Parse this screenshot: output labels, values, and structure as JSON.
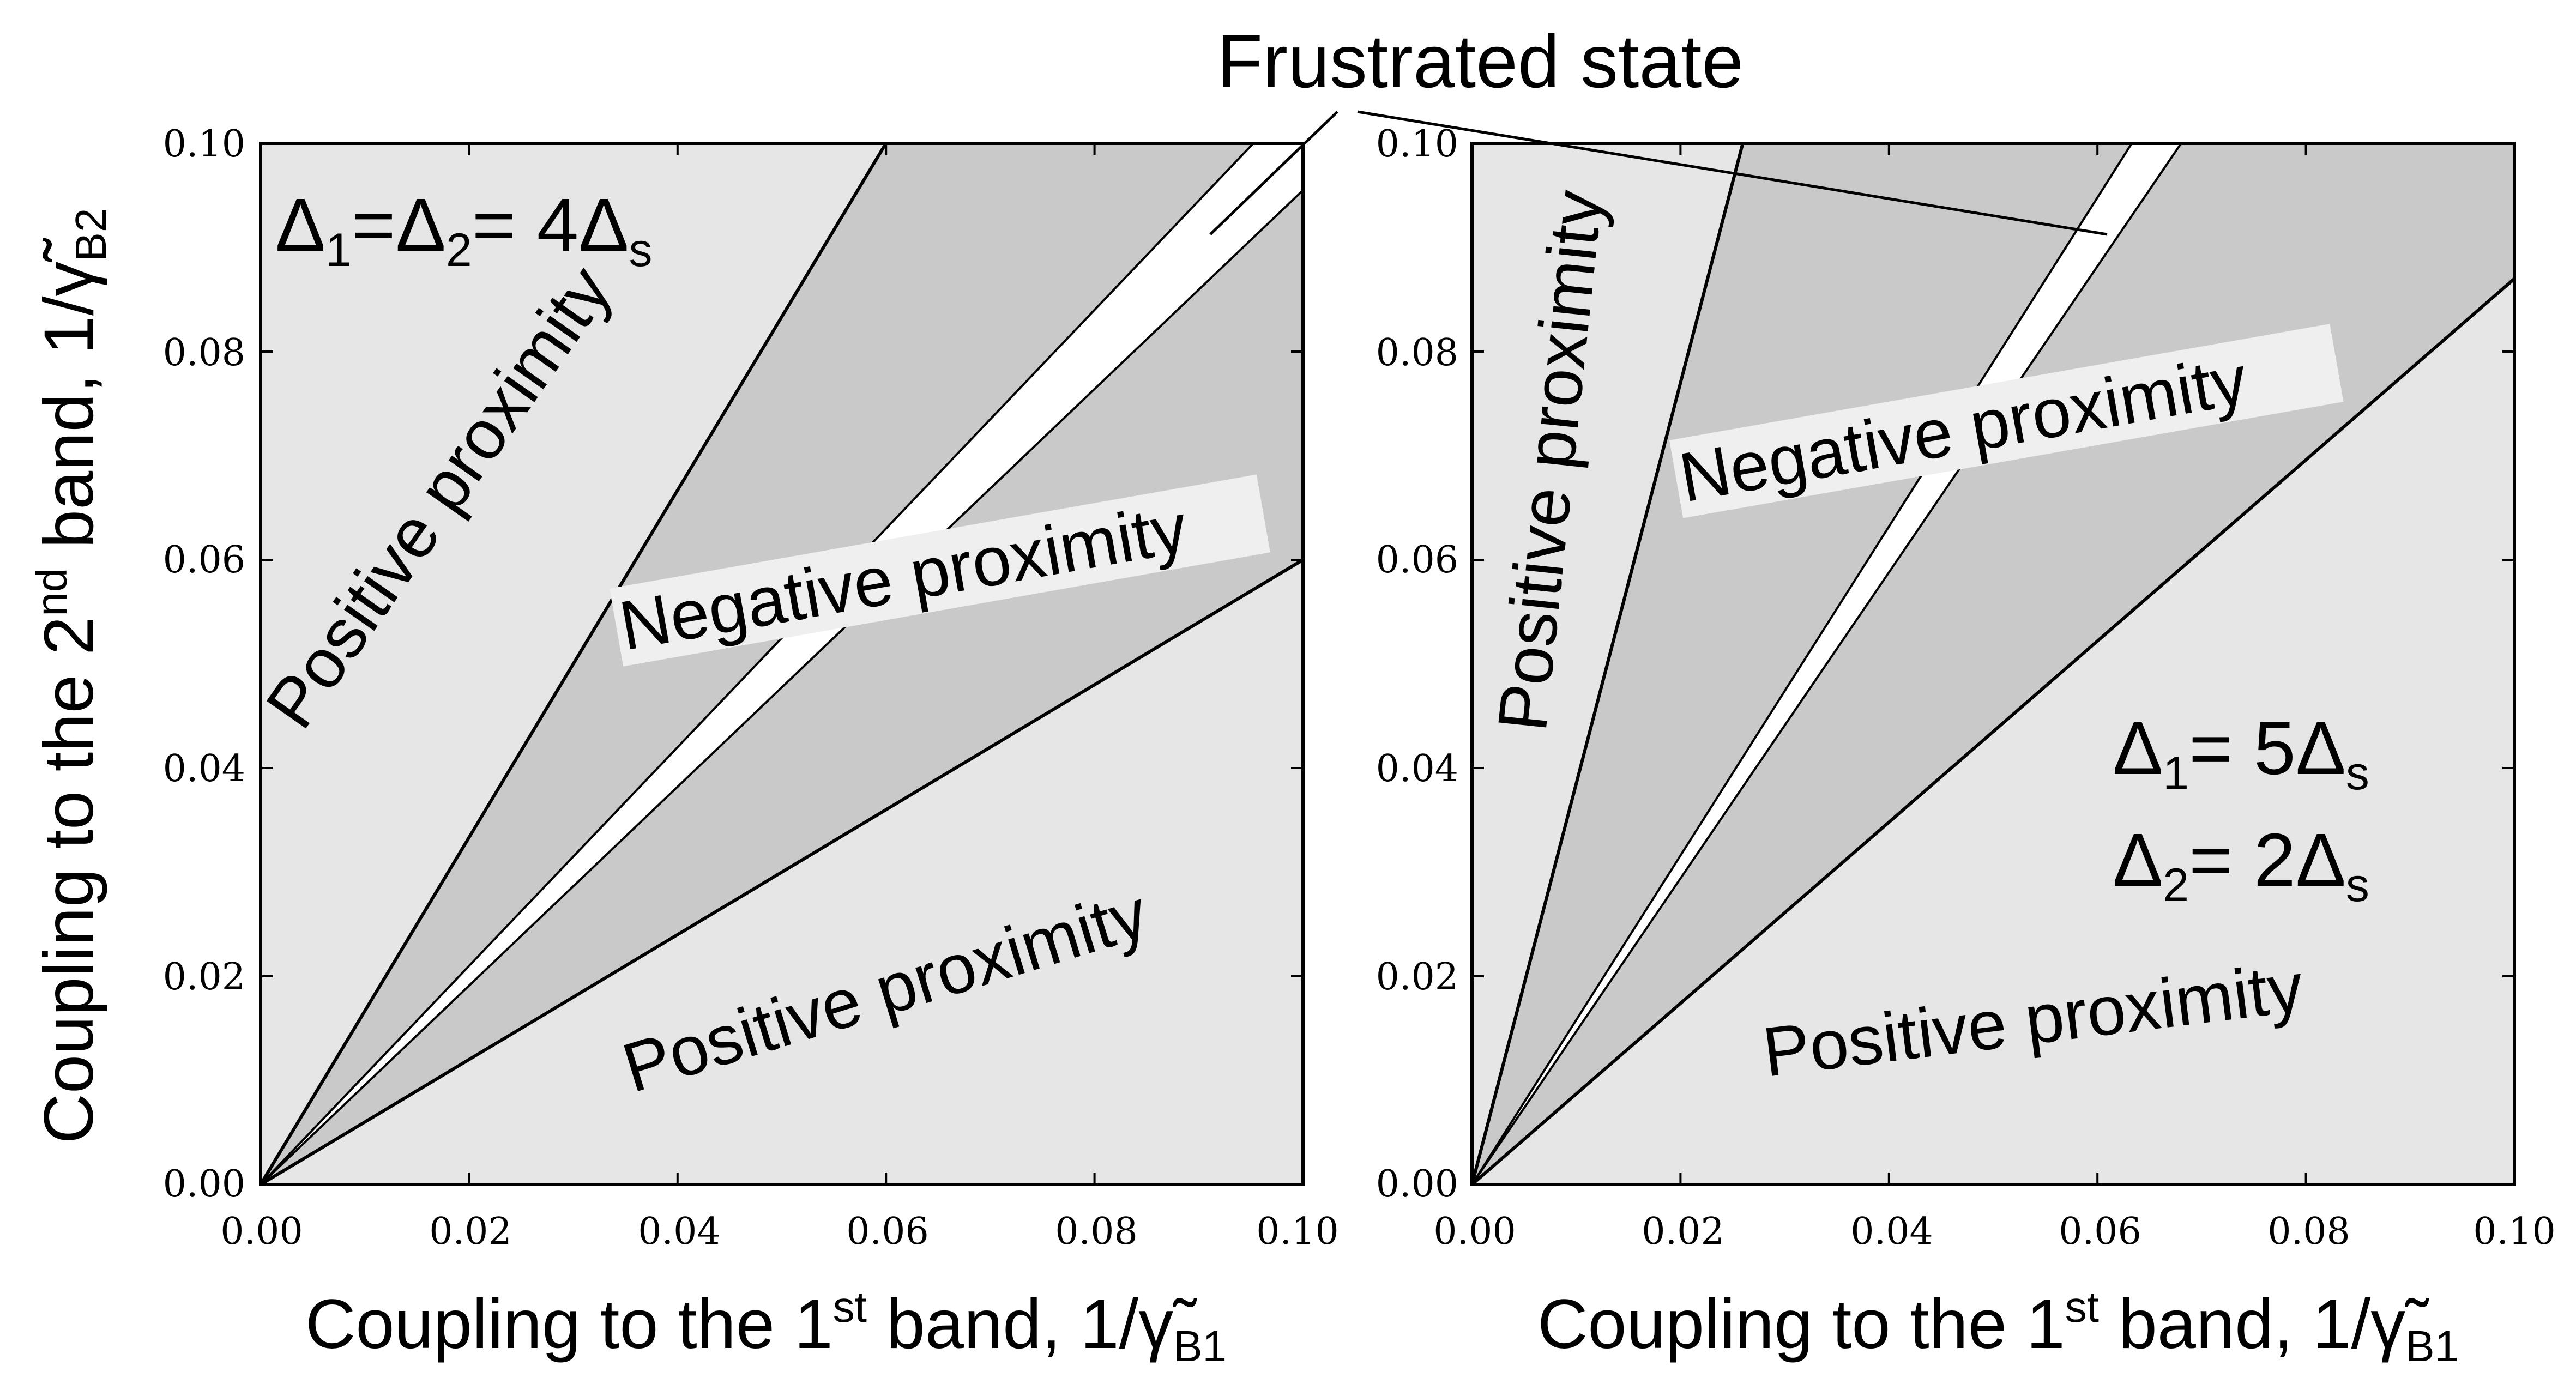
{
  "chart_data": [
    {
      "type": "area",
      "title": "",
      "xlabel": {
        "prefix": "Coupling to the 1",
        "sup": "st",
        "mid": " band, 1/",
        "symbol": "γ̃",
        "sub": "B1"
      },
      "ylabel": {
        "prefix": "Coupling to the 2",
        "sup": "nd",
        "mid": " band, 1/",
        "symbol": "γ̃",
        "sub": "B2"
      },
      "xlim": [
        0,
        0.1
      ],
      "ylim": [
        0,
        0.1
      ],
      "xticks": [
        "0.00",
        "0.02",
        "0.04",
        "0.06",
        "0.08",
        "0.10"
      ],
      "yticks": [
        "0.00",
        "0.02",
        "0.04",
        "0.06",
        "0.08",
        "0.10"
      ],
      "boundary_slopes": {
        "upper": 1.667,
        "frustrated_low": 0.955,
        "frustrated_high": 1.05,
        "lower": 0.6
      },
      "colors": {
        "positive": "#e6e6e6",
        "negative": "#c9c9c9",
        "frustrated": "#ffffff",
        "line": "#000000"
      },
      "annotation": {
        "d1": "Δ",
        "s1": "1",
        "eq1": "=",
        "d2": "Δ",
        "s2": "2",
        "eq2": "= 4",
        "d3": "Δ",
        "s3": "s"
      },
      "regions": {
        "positive_upper": "Positive proximity",
        "negative": "Negative proximity",
        "positive_lower": "Positive proximity"
      }
    },
    {
      "type": "area",
      "title": "",
      "xlabel": {
        "prefix": "Coupling to the 1",
        "sup": "st",
        "mid": " band, 1/",
        "symbol": "γ̃",
        "sub": "B1"
      },
      "xlim": [
        0,
        0.1
      ],
      "ylim": [
        0,
        0.1
      ],
      "xticks": [
        "0.00",
        "0.02",
        "0.04",
        "0.06",
        "0.08",
        "0.10"
      ],
      "yticks": [
        "0.00",
        "0.02",
        "0.04",
        "0.06",
        "0.08",
        "0.10"
      ],
      "boundary_slopes": {
        "upper": 3.85,
        "frustrated_low": 1.47,
        "frustrated_high": 1.58,
        "lower": 0.87
      },
      "colors": {
        "positive": "#e6e6e6",
        "negative": "#c9c9c9",
        "frustrated": "#ffffff",
        "line": "#000000"
      },
      "annotation_line1": {
        "d1": "Δ",
        "s1": "1",
        "eq1": "= 5",
        "d2": "Δ",
        "s2": "s"
      },
      "annotation_line2": {
        "d1": "Δ",
        "s1": "2",
        "eq1": "= 2",
        "d2": "Δ",
        "s2": "s"
      },
      "regions": {
        "positive_upper": "Positive proximity",
        "negative": "Negative proximity",
        "positive_lower": "Positive proximity"
      }
    }
  ],
  "callout": "Frustrated state"
}
